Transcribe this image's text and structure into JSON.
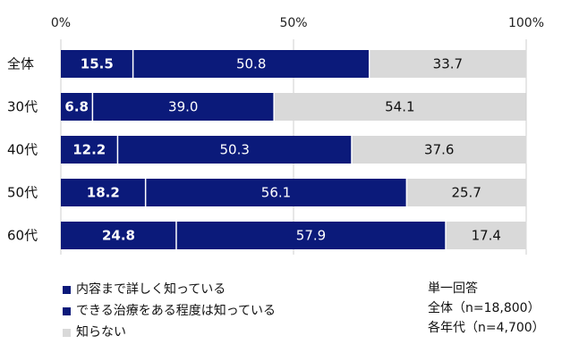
{
  "chart_data": {
    "type": "bar",
    "stacked": true,
    "orientation": "horizontal",
    "title": "",
    "xlabel": "",
    "ylabel": "",
    "xlim": [
      0,
      100
    ],
    "x_ticks": [
      "0%",
      "50%",
      "100%"
    ],
    "categories": [
      "全体",
      "30代",
      "40代",
      "50代",
      "60代"
    ],
    "series": [
      {
        "name": "内容まで詳しく知っている",
        "color": "#0b1a7a",
        "values": [
          15.5,
          6.8,
          12.2,
          18.2,
          24.8
        ]
      },
      {
        "name": "できる治療をある程度は知っている",
        "color": "#0b1a7a",
        "values": [
          50.8,
          39.0,
          50.3,
          56.1,
          57.9
        ]
      },
      {
        "name": "知らない",
        "color": "#d9d9d9",
        "values": [
          33.7,
          54.1,
          37.6,
          25.7,
          17.4
        ]
      }
    ],
    "grid": true,
    "legend_position": "bottom-left"
  },
  "note": {
    "line1": "単一回答",
    "line2": "全体（n=18,800）",
    "line3": "各年代（n=4,700）"
  }
}
